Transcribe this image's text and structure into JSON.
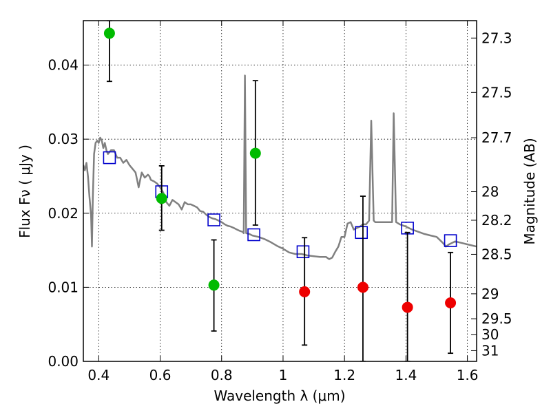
{
  "chart_data": {
    "type": "scatter",
    "xlabel": "Wavelength  λ (μm)",
    "ylabel": "Flux  Fν  ( μJy )",
    "ylabel_right": "Magnitude (AB)",
    "xlim": [
      0.35,
      1.63
    ],
    "ylim": [
      0.0,
      0.046
    ],
    "grid": true,
    "x_ticks": [
      {
        "value": 0.4,
        "label": "0.4"
      },
      {
        "value": 0.6,
        "label": "0.6"
      },
      {
        "value": 0.8,
        "label": "0.8"
      },
      {
        "value": 1.0,
        "label": "1"
      },
      {
        "value": 1.2,
        "label": "1.2"
      },
      {
        "value": 1.4,
        "label": "1.4"
      },
      {
        "value": 1.6,
        "label": "1.6"
      }
    ],
    "y_ticks": [
      {
        "value": 0.0,
        "label": "0.00"
      },
      {
        "value": 0.01,
        "label": "0.01"
      },
      {
        "value": 0.02,
        "label": "0.02"
      },
      {
        "value": 0.03,
        "label": "0.03"
      },
      {
        "value": 0.04,
        "label": "0.04"
      }
    ],
    "right_ticks": [
      {
        "value": 27.3,
        "label": "27.3"
      },
      {
        "value": 27.5,
        "label": "27.5"
      },
      {
        "value": 27.7,
        "label": "27.7"
      },
      {
        "value": 28.0,
        "label": "28"
      },
      {
        "value": 28.2,
        "label": "28.2"
      },
      {
        "value": 28.5,
        "label": "28.5"
      },
      {
        "value": 29.0,
        "label": "29"
      },
      {
        "value": 29.5,
        "label": "29.5"
      },
      {
        "value": 30.0,
        "label": "30"
      },
      {
        "value": 31.0,
        "label": "31"
      }
    ],
    "series": [
      {
        "kind": "line",
        "color": "#808080",
        "points": [
          [
            0.35,
            0.0265
          ],
          [
            0.355,
            0.0258
          ],
          [
            0.36,
            0.0268
          ],
          [
            0.365,
            0.025
          ],
          [
            0.37,
            0.0222
          ],
          [
            0.375,
            0.0198
          ],
          [
            0.378,
            0.0155
          ],
          [
            0.381,
            0.0222
          ],
          [
            0.385,
            0.028
          ],
          [
            0.39,
            0.0295
          ],
          [
            0.395,
            0.0298
          ],
          [
            0.4,
            0.0295
          ],
          [
            0.405,
            0.0302
          ],
          [
            0.41,
            0.0298
          ],
          [
            0.415,
            0.0288
          ],
          [
            0.42,
            0.0295
          ],
          [
            0.425,
            0.0285
          ],
          [
            0.43,
            0.028
          ],
          [
            0.44,
            0.0285
          ],
          [
            0.45,
            0.0285
          ],
          [
            0.46,
            0.0275
          ],
          [
            0.47,
            0.0275
          ],
          [
            0.48,
            0.0268
          ],
          [
            0.49,
            0.0272
          ],
          [
            0.5,
            0.0265
          ],
          [
            0.51,
            0.026
          ],
          [
            0.52,
            0.0255
          ],
          [
            0.525,
            0.0245
          ],
          [
            0.53,
            0.0235
          ],
          [
            0.535,
            0.0245
          ],
          [
            0.54,
            0.0255
          ],
          [
            0.55,
            0.0248
          ],
          [
            0.56,
            0.0252
          ],
          [
            0.565,
            0.025
          ],
          [
            0.57,
            0.0245
          ],
          [
            0.58,
            0.0243
          ],
          [
            0.59,
            0.024
          ],
          [
            0.6,
            0.0235
          ],
          [
            0.61,
            0.0228
          ],
          [
            0.615,
            0.0222
          ],
          [
            0.62,
            0.0215
          ],
          [
            0.63,
            0.021
          ],
          [
            0.64,
            0.0218
          ],
          [
            0.65,
            0.0215
          ],
          [
            0.66,
            0.0212
          ],
          [
            0.67,
            0.0205
          ],
          [
            0.68,
            0.0215
          ],
          [
            0.69,
            0.0212
          ],
          [
            0.7,
            0.0212
          ],
          [
            0.71,
            0.021
          ],
          [
            0.72,
            0.0208
          ],
          [
            0.73,
            0.0203
          ],
          [
            0.74,
            0.0202
          ],
          [
            0.75,
            0.0198
          ],
          [
            0.76,
            0.0195
          ],
          [
            0.77,
            0.0193
          ],
          [
            0.78,
            0.0192
          ],
          [
            0.79,
            0.019
          ],
          [
            0.8,
            0.0188
          ],
          [
            0.81,
            0.0185
          ],
          [
            0.82,
            0.0183
          ],
          [
            0.83,
            0.0182
          ],
          [
            0.84,
            0.018
          ],
          [
            0.85,
            0.0178
          ],
          [
            0.86,
            0.0176
          ],
          [
            0.868,
            0.0175
          ],
          [
            0.872,
            0.0173
          ],
          [
            0.876,
            0.0386
          ],
          [
            0.88,
            0.0173
          ],
          [
            0.89,
            0.0172
          ],
          [
            0.9,
            0.017
          ],
          [
            0.92,
            0.0168
          ],
          [
            0.94,
            0.0165
          ],
          [
            0.96,
            0.0161
          ],
          [
            0.98,
            0.0156
          ],
          [
            1.0,
            0.0152
          ],
          [
            1.02,
            0.0147
          ],
          [
            1.04,
            0.0145
          ],
          [
            1.06,
            0.0145
          ],
          [
            1.08,
            0.0143
          ],
          [
            1.1,
            0.0142
          ],
          [
            1.12,
            0.0141
          ],
          [
            1.14,
            0.0141
          ],
          [
            1.15,
            0.0138
          ],
          [
            1.16,
            0.014
          ],
          [
            1.17,
            0.0148
          ],
          [
            1.18,
            0.0155
          ],
          [
            1.19,
            0.0168
          ],
          [
            1.2,
            0.0168
          ],
          [
            1.21,
            0.0186
          ],
          [
            1.22,
            0.0188
          ],
          [
            1.23,
            0.0178
          ],
          [
            1.24,
            0.018
          ],
          [
            1.25,
            0.0182
          ],
          [
            1.26,
            0.0185
          ],
          [
            1.27,
            0.0185
          ],
          [
            1.28,
            0.019
          ],
          [
            1.287,
            0.0325
          ],
          [
            1.295,
            0.019
          ],
          [
            1.3,
            0.0188
          ],
          [
            1.32,
            0.0188
          ],
          [
            1.34,
            0.0188
          ],
          [
            1.355,
            0.0188
          ],
          [
            1.36,
            0.0335
          ],
          [
            1.368,
            0.0188
          ],
          [
            1.38,
            0.0185
          ],
          [
            1.4,
            0.0182
          ],
          [
            1.42,
            0.0178
          ],
          [
            1.44,
            0.0175
          ],
          [
            1.46,
            0.0172
          ],
          [
            1.48,
            0.017
          ],
          [
            1.5,
            0.0168
          ],
          [
            1.52,
            0.016
          ],
          [
            1.53,
            0.0155
          ],
          [
            1.54,
            0.0158
          ],
          [
            1.56,
            0.0162
          ],
          [
            1.58,
            0.016
          ],
          [
            1.6,
            0.0158
          ],
          [
            1.62,
            0.0156
          ],
          [
            1.63,
            0.0155
          ]
        ]
      },
      {
        "kind": "open-square",
        "color": "#0000cc",
        "points": [
          [
            0.435,
            0.0275
          ],
          [
            0.605,
            0.0229
          ],
          [
            0.775,
            0.0191
          ],
          [
            0.905,
            0.0171
          ],
          [
            1.065,
            0.0148
          ],
          [
            1.255,
            0.0174
          ],
          [
            1.405,
            0.018
          ],
          [
            1.545,
            0.0163
          ]
        ]
      },
      {
        "kind": "filled-circle",
        "color": "#00bb00",
        "points": [
          {
            "x": 0.435,
            "y": 0.0443,
            "lo": 0.0378,
            "hi": 0.046
          },
          {
            "x": 0.605,
            "y": 0.022,
            "lo": 0.0177,
            "hi": 0.0264
          },
          {
            "x": 0.775,
            "y": 0.0103,
            "lo": 0.0041,
            "hi": 0.0164
          },
          {
            "x": 0.91,
            "y": 0.0281,
            "lo": 0.0184,
            "hi": 0.0379
          }
        ]
      },
      {
        "kind": "filled-circle",
        "color": "#ee0000",
        "points": [
          {
            "x": 1.07,
            "y": 0.0094,
            "lo": 0.0022,
            "hi": 0.0167
          },
          {
            "x": 1.26,
            "y": 0.01,
            "lo": 0.0,
            "hi": 0.0223
          },
          {
            "x": 1.405,
            "y": 0.0073,
            "lo": 0.0,
            "hi": 0.0174
          },
          {
            "x": 1.545,
            "y": 0.0079,
            "lo": 0.0011,
            "hi": 0.0147
          }
        ]
      }
    ]
  }
}
